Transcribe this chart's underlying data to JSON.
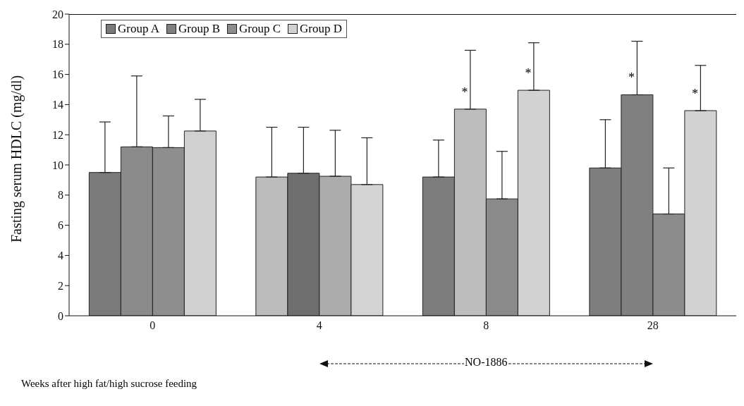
{
  "chart_data": {
    "type": "bar",
    "ylabel": "Fasting serum HDLC (mg/dl)",
    "xlabel": "Weeks after high fat/high sucrose feeding",
    "categories": [
      "0",
      "4",
      "8",
      "28"
    ],
    "series": [
      {
        "name": "Group A",
        "color": "#7a7a7a",
        "colors": [
          "#7a7a7a",
          "#bcbcbc",
          "#7c7c7c",
          "#7e7e7e"
        ],
        "values": [
          9.5,
          9.2,
          9.2,
          9.8
        ],
        "errors": [
          [
            9.5,
            12.85
          ],
          [
            9.2,
            12.5
          ],
          [
            9.2,
            11.65
          ],
          [
            9.8,
            13.0
          ]
        ]
      },
      {
        "name": "Group B",
        "color": "#808080",
        "colors": [
          "#8a8a8a",
          "#6e6e6e",
          "#bdbdbd",
          "#808080"
        ],
        "values": [
          11.2,
          9.45,
          13.7,
          14.65
        ],
        "errors": [
          [
            11.2,
            15.9
          ],
          [
            9.45,
            12.5
          ],
          [
            13.7,
            17.6
          ],
          [
            14.65,
            18.2
          ]
        ],
        "value_labels": [
          null,
          null,
          "*",
          "*"
        ]
      },
      {
        "name": "Group C",
        "color": "#8c8c8c",
        "colors": [
          "#8e8e8e",
          "#acacac",
          "#8a8a8a",
          "#8c8c8c"
        ],
        "values": [
          11.15,
          9.25,
          7.75,
          6.75
        ],
        "errors": [
          [
            11.15,
            13.25
          ],
          [
            9.25,
            12.3
          ],
          [
            7.75,
            10.9
          ],
          [
            6.75,
            9.8
          ]
        ]
      },
      {
        "name": "Group D",
        "color": "#d2d2d2",
        "colors": [
          "#d0d0d0",
          "#d4d4d4",
          "#d2d2d2",
          "#d2d2d2"
        ],
        "values": [
          12.25,
          8.7,
          14.95,
          13.6
        ],
        "errors": [
          [
            12.25,
            14.35
          ],
          [
            8.7,
            11.8
          ],
          [
            14.95,
            18.1
          ],
          [
            13.6,
            16.6
          ]
        ],
        "value_labels": [
          null,
          null,
          "*",
          "*"
        ]
      }
    ],
    "ylim": [
      0,
      20
    ],
    "yticks": [
      0,
      2,
      4,
      6,
      8,
      10,
      12,
      14,
      16,
      18,
      20
    ],
    "legend": "top left",
    "annotations": [
      "NO-1886"
    ]
  }
}
